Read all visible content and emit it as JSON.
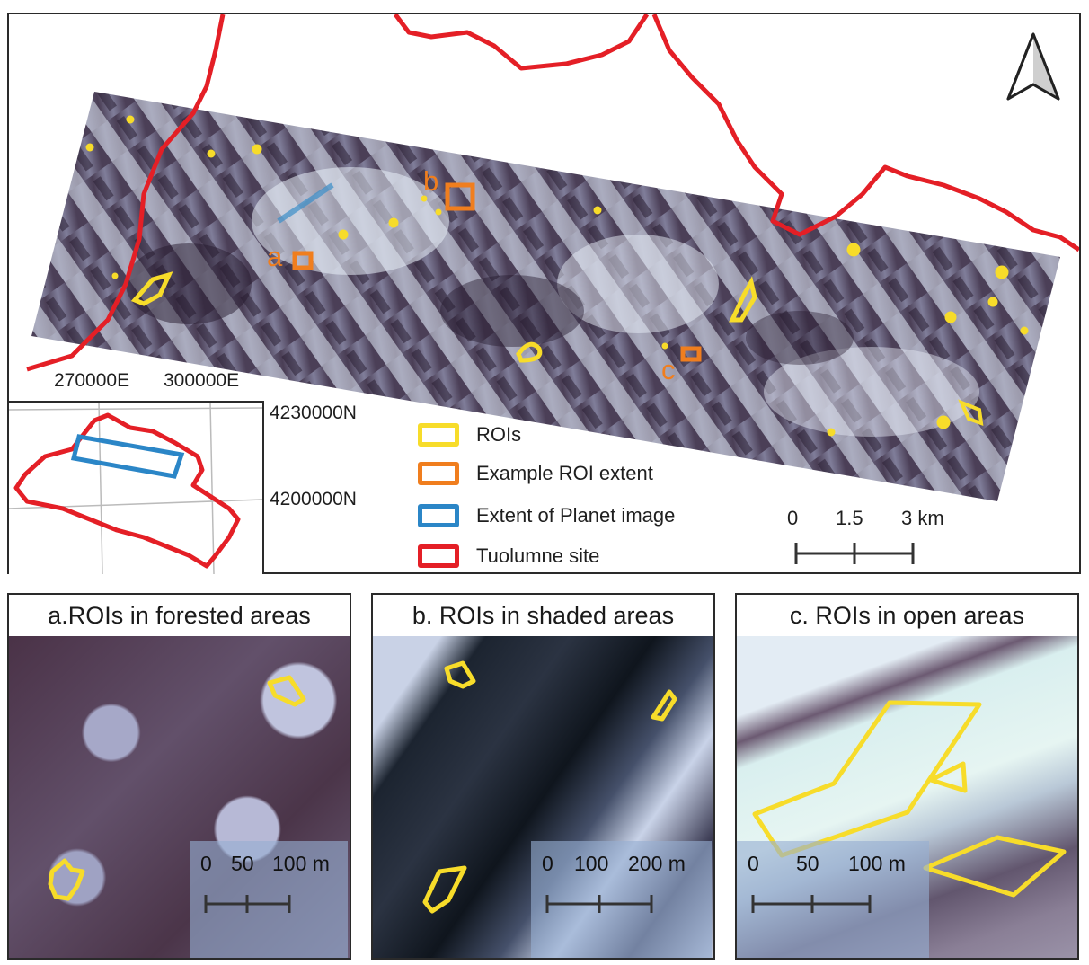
{
  "main_map": {
    "roi_labels": [
      "a",
      "b",
      "c"
    ],
    "inset": {
      "x_ticks": [
        "270000E",
        "300000E"
      ],
      "y_ticks": [
        "4230000N",
        "4200000N"
      ]
    },
    "legend": [
      {
        "label": "ROIs",
        "color": "#f7dc2a"
      },
      {
        "label": "Example ROI extent",
        "color": "#f07e1e"
      },
      {
        "label": "Extent of Planet image",
        "color": "#2b86c7"
      },
      {
        "label": "Tuolumne site",
        "color": "#e41f26"
      }
    ],
    "scale_bar": {
      "labels": [
        "0",
        "1.5",
        "3 km"
      ]
    },
    "north_arrow_icon": "north-arrow-icon"
  },
  "panels": [
    {
      "title": "a.ROIs in forested areas",
      "scale_labels": [
        "0",
        "50",
        "100 m"
      ]
    },
    {
      "title": "b. ROIs in shaded areas",
      "scale_labels": [
        "0",
        "100",
        "200 m"
      ]
    },
    {
      "title": "c. ROIs in open areas",
      "scale_labels": [
        "0",
        "50",
        "100 m"
      ]
    }
  ],
  "colors": {
    "roi": "#f7dc2a",
    "example_roi": "#f07e1e",
    "planet_extent": "#2b86c7",
    "site_boundary": "#e41f26"
  }
}
